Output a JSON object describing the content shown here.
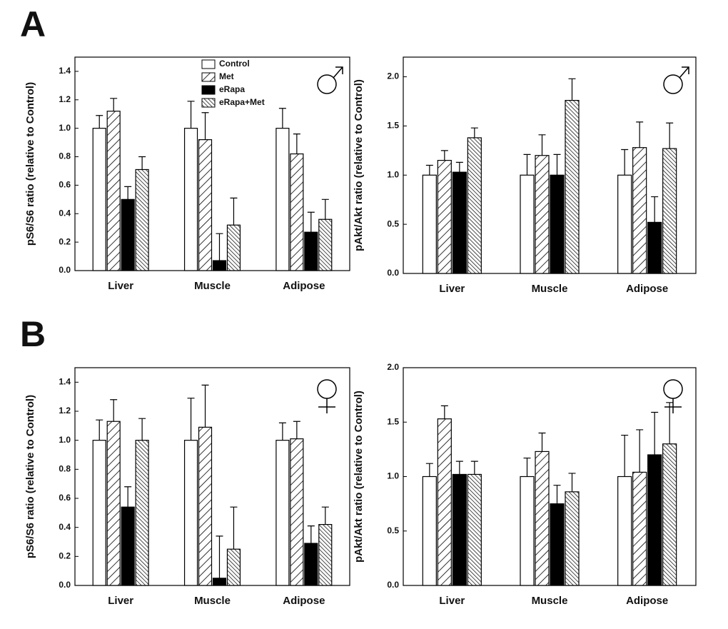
{
  "chart_data": [
    {
      "type": "bar",
      "label": "A",
      "sex": "male",
      "ylabel": "pS6/S6 ratio (relative to Control)",
      "categories": [
        "Liver",
        "Muscle",
        "Adipose"
      ],
      "legend": true,
      "ylim": [
        0,
        1.5
      ],
      "yticks": [
        {
          "value": 0,
          "label": "0.0"
        },
        0.2,
        0.4,
        0.6,
        0.8,
        {
          "value": 1,
          "label": "1.0"
        },
        1.2,
        1.4
      ],
      "series": [
        {
          "name": "Control",
          "color": "#ffffff",
          "pattern": "none",
          "values": [
            1.0,
            1.0,
            1.0
          ],
          "errors": [
            0.09,
            0.19,
            0.14
          ]
        },
        {
          "name": "Met",
          "color": "#ffffff",
          "pattern": "diagonal",
          "values": [
            1.12,
            0.92,
            0.82
          ],
          "errors": [
            0.09,
            0.19,
            0.14
          ]
        },
        {
          "name": "eRapa",
          "color": "#000000",
          "pattern": "none",
          "values": [
            0.5,
            0.07,
            0.27
          ],
          "errors": [
            0.09,
            0.19,
            0.14
          ]
        },
        {
          "name": "eRapa+Met",
          "color": "#ffffff",
          "pattern": "dense-diagonal",
          "values": [
            0.71,
            0.32,
            0.36
          ],
          "errors": [
            0.09,
            0.19,
            0.14
          ]
        }
      ]
    },
    {
      "type": "bar",
      "sex": "male",
      "ylabel": "pAkt/Akt ratio (relative to Control)",
      "categories": [
        "Liver",
        "Muscle",
        "Adipose"
      ],
      "ylim": [
        0,
        2.2
      ],
      "yticks": [
        {
          "value": 0,
          "label": "0.0"
        },
        0.5,
        {
          "value": 1,
          "label": "1.0"
        },
        1.5,
        {
          "value": 2,
          "label": "2.0"
        }
      ],
      "series": [
        {
          "color": "#ffffff",
          "pattern": "none",
          "values": [
            1.0,
            1.0,
            1.0
          ],
          "errors": [
            0.1,
            0.21,
            0.26
          ]
        },
        {
          "color": "#ffffff",
          "pattern": "diagonal",
          "values": [
            1.15,
            1.2,
            1.28
          ],
          "errors": [
            0.1,
            0.21,
            0.26
          ]
        },
        {
          "color": "#000000",
          "pattern": "none",
          "values": [
            1.03,
            1.0,
            0.52
          ],
          "errors": [
            0.1,
            0.21,
            0.26
          ]
        },
        {
          "color": "#ffffff",
          "pattern": "dense-diagonal",
          "values": [
            1.38,
            1.76,
            1.27
          ],
          "errors": [
            0.1,
            0.22,
            0.26
          ]
        }
      ]
    },
    {
      "type": "bar",
      "label": "B",
      "sex": "female",
      "ylabel": "pS6/S6 ratio (relative to Control)",
      "categories": [
        "Liver",
        "Muscle",
        "Adipose"
      ],
      "ylim": [
        0,
        1.5
      ],
      "yticks": [
        {
          "value": 0,
          "label": "0.0"
        },
        0.2,
        0.4,
        0.6,
        0.8,
        {
          "value": 1,
          "label": "1.0"
        },
        1.2,
        1.4
      ],
      "series": [
        {
          "color": "#ffffff",
          "pattern": "none",
          "values": [
            1.0,
            1.0,
            1.0
          ],
          "errors": [
            0.14,
            0.29,
            0.12
          ]
        },
        {
          "color": "#ffffff",
          "pattern": "diagonal",
          "values": [
            1.13,
            1.09,
            1.01
          ],
          "errors": [
            0.15,
            0.29,
            0.12
          ]
        },
        {
          "color": "#000000",
          "pattern": "none",
          "values": [
            0.54,
            0.05,
            0.29
          ],
          "errors": [
            0.14,
            0.29,
            0.12
          ]
        },
        {
          "color": "#ffffff",
          "pattern": "dense-diagonal",
          "values": [
            1.0,
            0.25,
            0.42
          ],
          "errors": [
            0.15,
            0.29,
            0.12
          ]
        }
      ]
    },
    {
      "type": "bar",
      "sex": "female",
      "ylabel": "pAkt/Akt ratio (relative to Control)",
      "categories": [
        "Liver",
        "Muscle",
        "Adipose"
      ],
      "ylim": [
        0,
        2.0
      ],
      "yticks": [
        {
          "value": 0,
          "label": "0.0"
        },
        0.5,
        {
          "value": 1,
          "label": "1.0"
        },
        1.5,
        {
          "value": 2,
          "label": "2.0"
        }
      ],
      "series": [
        {
          "color": "#ffffff",
          "pattern": "none",
          "values": [
            1.0,
            1.0,
            1.0
          ],
          "errors": [
            0.12,
            0.17,
            0.38
          ]
        },
        {
          "color": "#ffffff",
          "pattern": "diagonal",
          "values": [
            1.53,
            1.23,
            1.04
          ],
          "errors": [
            0.12,
            0.17,
            0.39
          ]
        },
        {
          "color": "#000000",
          "pattern": "none",
          "values": [
            1.02,
            0.75,
            1.2
          ],
          "errors": [
            0.12,
            0.17,
            0.39
          ]
        },
        {
          "color": "#ffffff",
          "pattern": "dense-diagonal",
          "values": [
            1.02,
            0.86,
            1.3
          ],
          "errors": [
            0.12,
            0.17,
            0.38
          ]
        }
      ]
    }
  ]
}
